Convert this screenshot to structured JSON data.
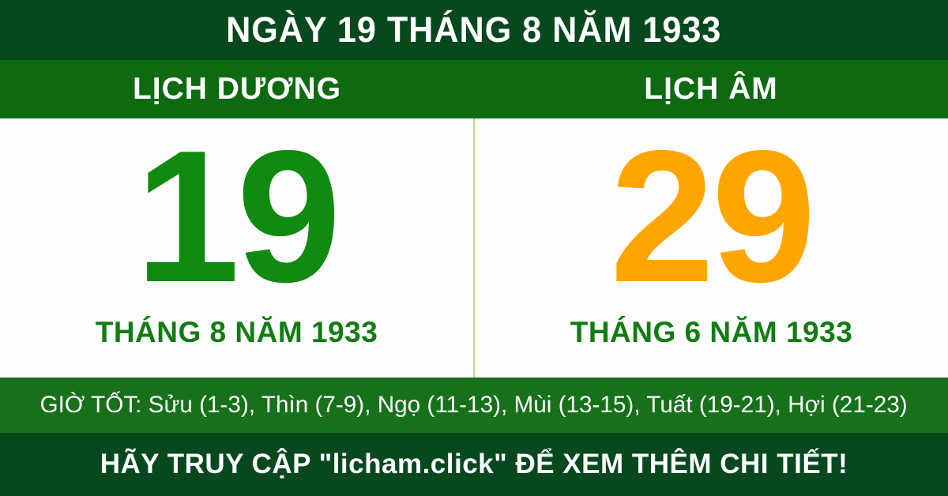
{
  "top_banner": {
    "title": "NGÀY 19 THÁNG 8 NĂM 1933"
  },
  "calendar": {
    "solar": {
      "header": "LỊCH DƯƠNG",
      "day": "19",
      "month_year": "THÁNG 8 NĂM 1933"
    },
    "lunar": {
      "header": "LỊCH ÂM",
      "day": "29",
      "month_year": "THÁNG 6 NĂM 1933"
    }
  },
  "good_hours": {
    "label": "GIỜ TỐT: Sửu (1-3), Thìn (7-9), Ngọ (11-13), Mùi (13-15), Tuất (19-21), Hợi (21-23)"
  },
  "footer": {
    "label": "HÃY TRUY CẬP \"licham.click\" ĐỂ XEM THÊM CHI TIẾT!"
  },
  "colors": {
    "dark_green": "#07481e",
    "header_green": "#0e6a10",
    "good_hours_green": "#17701a",
    "divider_light_green": "#b5d98e",
    "solar_day_green": "#0f8b0f",
    "month_label_green": "#127c12",
    "lunar_day_orange": "#ffa502",
    "panel_white": "#fdfdfd"
  }
}
